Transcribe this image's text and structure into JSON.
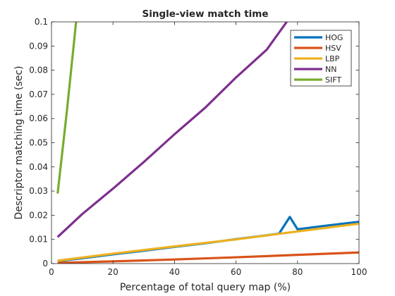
{
  "chart_data": {
    "type": "line",
    "title": "Single-view match time",
    "xlabel": "Percentage of total query map (%)",
    "ylabel": "Descriptor matching time (sec)",
    "xlim": [
      0,
      100
    ],
    "ylim": [
      0,
      0.1
    ],
    "xticks": [
      "0",
      "20",
      "40",
      "60",
      "80",
      "100"
    ],
    "yticks": [
      "0",
      "0.01",
      "0.02",
      "0.03",
      "0.04",
      "0.05",
      "0.06",
      "0.07",
      "0.08",
      "0.09",
      "0.1"
    ],
    "grid": false,
    "legend_position": "top-right",
    "series": [
      {
        "name": "HOG",
        "color": "#0072BD",
        "x": [
          2,
          10,
          20,
          30,
          40,
          50,
          60,
          70,
          74,
          77.5,
          80,
          90,
          100
        ],
        "y": [
          0.001,
          0.0022,
          0.0038,
          0.0053,
          0.0069,
          0.0084,
          0.0101,
          0.0117,
          0.0124,
          0.0193,
          0.0142,
          0.0158,
          0.0173
        ]
      },
      {
        "name": "HSV",
        "color": "#D95319",
        "x": [
          2,
          20,
          40,
          60,
          80,
          100
        ],
        "y": [
          0.0003,
          0.0009,
          0.0017,
          0.0026,
          0.0036,
          0.0046
        ]
      },
      {
        "name": "LBP",
        "color": "#EDB120",
        "x": [
          2,
          20,
          40,
          60,
          80,
          100
        ],
        "y": [
          0.0012,
          0.0041,
          0.0071,
          0.01,
          0.0133,
          0.0165
        ]
      },
      {
        "name": "NN",
        "color": "#7E2F8E",
        "x": [
          2,
          10,
          20,
          30,
          40,
          50,
          60,
          70,
          76.5
        ],
        "y": [
          0.011,
          0.0205,
          0.031,
          0.042,
          0.0535,
          0.0645,
          0.077,
          0.0885,
          0.1
        ]
      },
      {
        "name": "SIFT",
        "color": "#77AC30",
        "x": [
          2,
          5,
          8
        ],
        "y": [
          0.029,
          0.063,
          0.1
        ]
      }
    ]
  }
}
